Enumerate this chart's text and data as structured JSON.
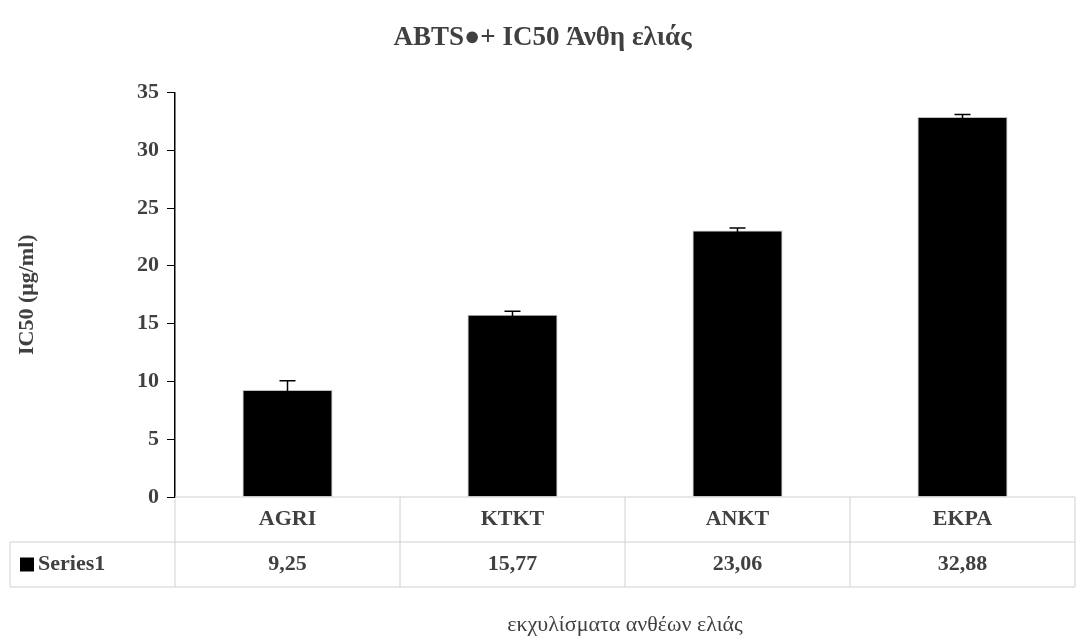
{
  "chart_data": {
    "type": "bar",
    "title": "ABTS●+ IC50 Άνθη ελιάς",
    "xlabel": "εκχυλίσματα ανθέων ελιάς",
    "ylabel": "IC50 (μg/ml)",
    "categories": [
      "AGRI",
      "KTKT",
      "ANKT",
      "EKPA"
    ],
    "series": [
      {
        "name": "Series1",
        "color": "#000000",
        "values": [
          9.25,
          15.77,
          23.06,
          32.88
        ],
        "errors": [
          0.8,
          0.3,
          0.2,
          0.2
        ],
        "value_labels": [
          "9,25",
          "15,77",
          "23,06",
          "32,88"
        ]
      }
    ],
    "ylim": [
      0,
      35
    ],
    "yticks": [
      0,
      5,
      10,
      15,
      20,
      25,
      30,
      35
    ],
    "grid": false,
    "legend": "bottom"
  }
}
